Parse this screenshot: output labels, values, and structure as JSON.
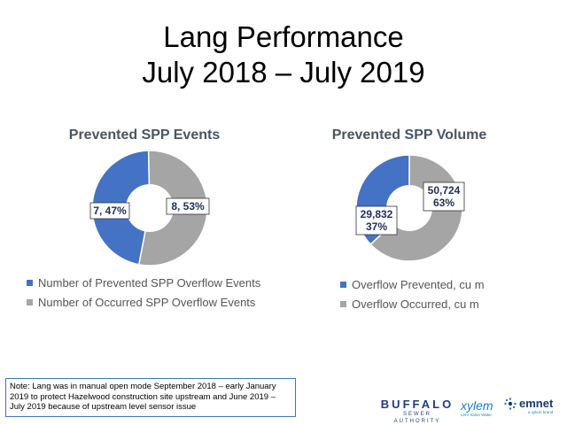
{
  "slide": {
    "title_line1": "Lang Performance",
    "title_line2": "July 2018 – July 2019",
    "note": "Note: Lang was in manual open mode September 2018 – early January 2019 to protect Hazelwood construction site upstream and June 2019 – July 2019 because of upstream level sensor issue"
  },
  "logos": {
    "buffalo": "BUFFALO",
    "buffalo_sub": "SEWER AUTHORITY",
    "xylem": "xylem",
    "xylem_sub": "Let's Solve Water",
    "emnet": "emnet",
    "emnet_sub": "a xylem brand"
  },
  "colors": {
    "blue": "#4472c4",
    "gray": "#a5a5a5",
    "title_gray": "#4a5560"
  },
  "chart_data": [
    {
      "type": "pie",
      "title": "Prevented SPP Events",
      "series": [
        {
          "name": "Number of Prevented SPP Overflow Events",
          "value": 7,
          "percent": 47,
          "label": "7, 47%",
          "color": "#4472c4"
        },
        {
          "name": "Number of Occurred SPP Overflow Events",
          "value": 8,
          "percent": 53,
          "label": "8, 53%",
          "color": "#a5a5a5"
        }
      ],
      "legend": "bottom"
    },
    {
      "type": "pie",
      "title": "Prevented SPP Volume",
      "series": [
        {
          "name": "Overflow Prevented, cu m",
          "value": 29832,
          "percent": 37,
          "label_value": "29,832",
          "label_percent": "37%",
          "color": "#4472c4"
        },
        {
          "name": "Overflow Occurred, cu m",
          "value": 50724,
          "percent": 63,
          "label_value": "50,724",
          "label_percent": "63%",
          "color": "#a5a5a5"
        }
      ],
      "legend": "bottom"
    }
  ]
}
